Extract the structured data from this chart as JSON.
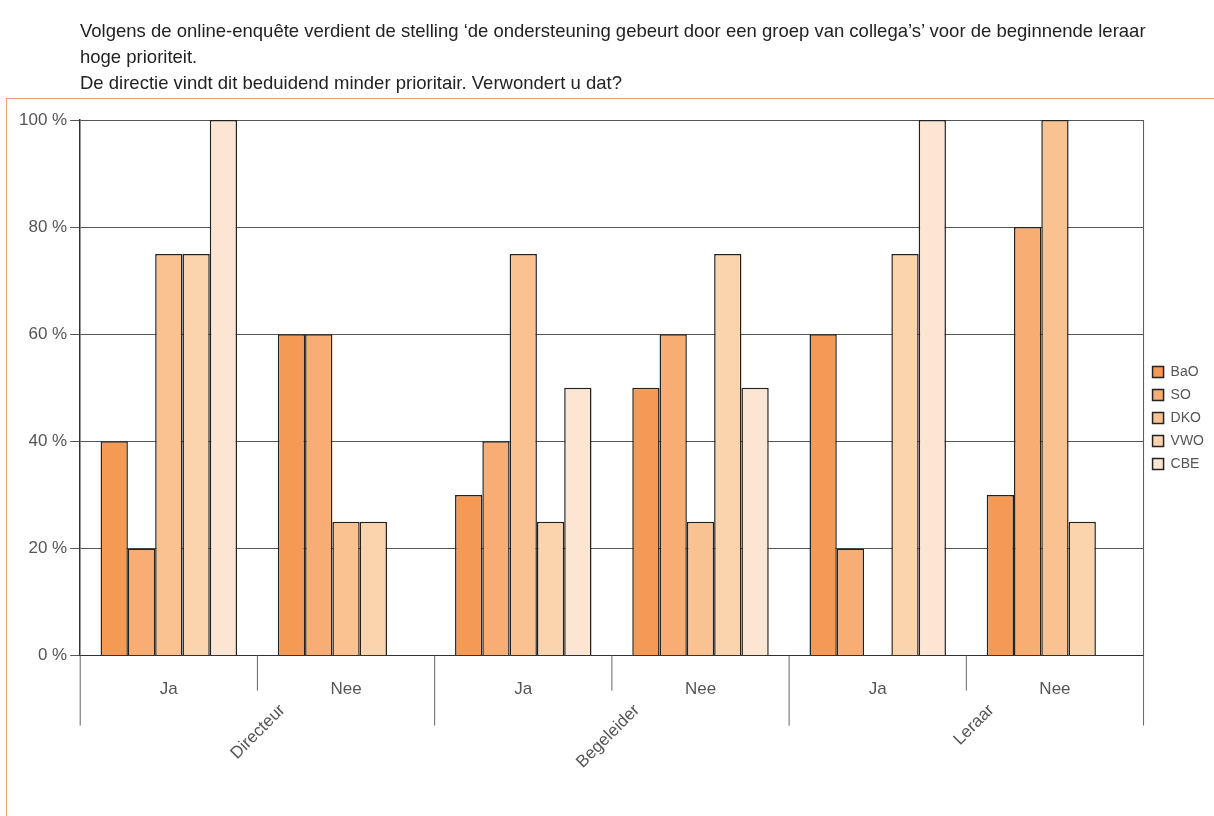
{
  "chart_data": {
    "type": "bar",
    "title": "Volgens de online-enquête verdient de stelling ‘de ondersteuning gebeurt door een groep van collega’s’ voor de beginnende leraar hoge prioriteit.",
    "subtitle": "De directie vindt dit beduidend minder prioritair. Verwondert u dat?",
    "categories": [
      "Ja",
      "Nee",
      "Ja",
      "Nee",
      "Ja",
      "Nee"
    ],
    "annotations": [
      "Directeur",
      "Begeleider",
      "Leraar"
    ],
    "series": [
      {
        "name": "BaO",
        "color": "#f59a55",
        "values": [
          40,
          60,
          30,
          50,
          60,
          30
        ]
      },
      {
        "name": "SO",
        "color": "#f7ad74",
        "values": [
          20,
          60,
          40,
          60,
          20,
          80
        ]
      },
      {
        "name": "DKO",
        "color": "#f9c290",
        "values": [
          75,
          25,
          75,
          25,
          null,
          100
        ]
      },
      {
        "name": "VWO",
        "color": "#fbd4ae",
        "values": [
          75,
          25,
          25,
          75,
          75,
          25
        ]
      },
      {
        "name": "CBE",
        "color": "#fde5d3",
        "values": [
          100,
          null,
          50,
          50,
          100,
          null
        ]
      }
    ],
    "ylim": [
      0,
      100
    ],
    "yticks": [
      {
        "value": 0,
        "label": "0 %"
      },
      {
        "value": 20,
        "label": "20 %"
      },
      {
        "value": 40,
        "label": "40 %"
      },
      {
        "value": 60,
        "label": "60 %"
      },
      {
        "value": 80,
        "label": "80 %"
      },
      {
        "value": 100,
        "label": "100 %"
      }
    ],
    "grid": "y",
    "legend": "right"
  }
}
